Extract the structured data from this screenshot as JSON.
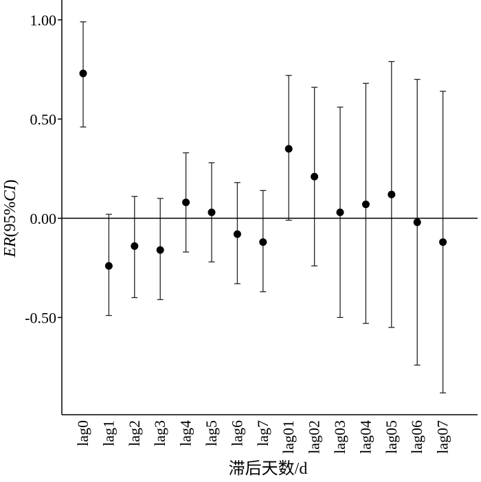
{
  "chart_data": {
    "type": "scatter",
    "subtype": "point-with-error-bars",
    "xlabel": "滞后天数/d",
    "ylabel": "ER(95%CI)",
    "ylabel_parts": [
      {
        "text": "ER",
        "italic": true
      },
      {
        "text": "(95%",
        "italic": false
      },
      {
        "text": "CI",
        "italic": true
      },
      {
        "text": ")",
        "italic": false
      }
    ],
    "ylim": [
      -0.99,
      1.1
    ],
    "yticks": [
      1.0,
      0.5,
      0.0,
      -0.5
    ],
    "ytick_labels": [
      "1.00",
      "0.50",
      "0.00",
      "-0.50"
    ],
    "reference_line": 0,
    "categories": [
      "lag0",
      "lag1",
      "lag2",
      "lag3",
      "lag4",
      "lag5",
      "lag6",
      "lag7",
      "lag01",
      "lag02",
      "lag03",
      "lag04",
      "lag05",
      "lag06",
      "lag07"
    ],
    "estimate": [
      0.73,
      -0.24,
      -0.14,
      -0.16,
      0.08,
      0.03,
      -0.08,
      -0.12,
      0.35,
      0.21,
      0.03,
      0.07,
      0.12,
      -0.02,
      -0.12
    ],
    "lower": [
      0.46,
      -0.49,
      -0.4,
      -0.41,
      -0.17,
      -0.22,
      -0.33,
      -0.37,
      -0.01,
      -0.24,
      -0.5,
      -0.53,
      -0.55,
      -0.74,
      -0.88
    ],
    "upper": [
      0.99,
      0.02,
      0.11,
      0.1,
      0.33,
      0.28,
      0.18,
      0.14,
      0.72,
      0.66,
      0.56,
      0.68,
      0.79,
      0.7,
      0.64
    ]
  }
}
